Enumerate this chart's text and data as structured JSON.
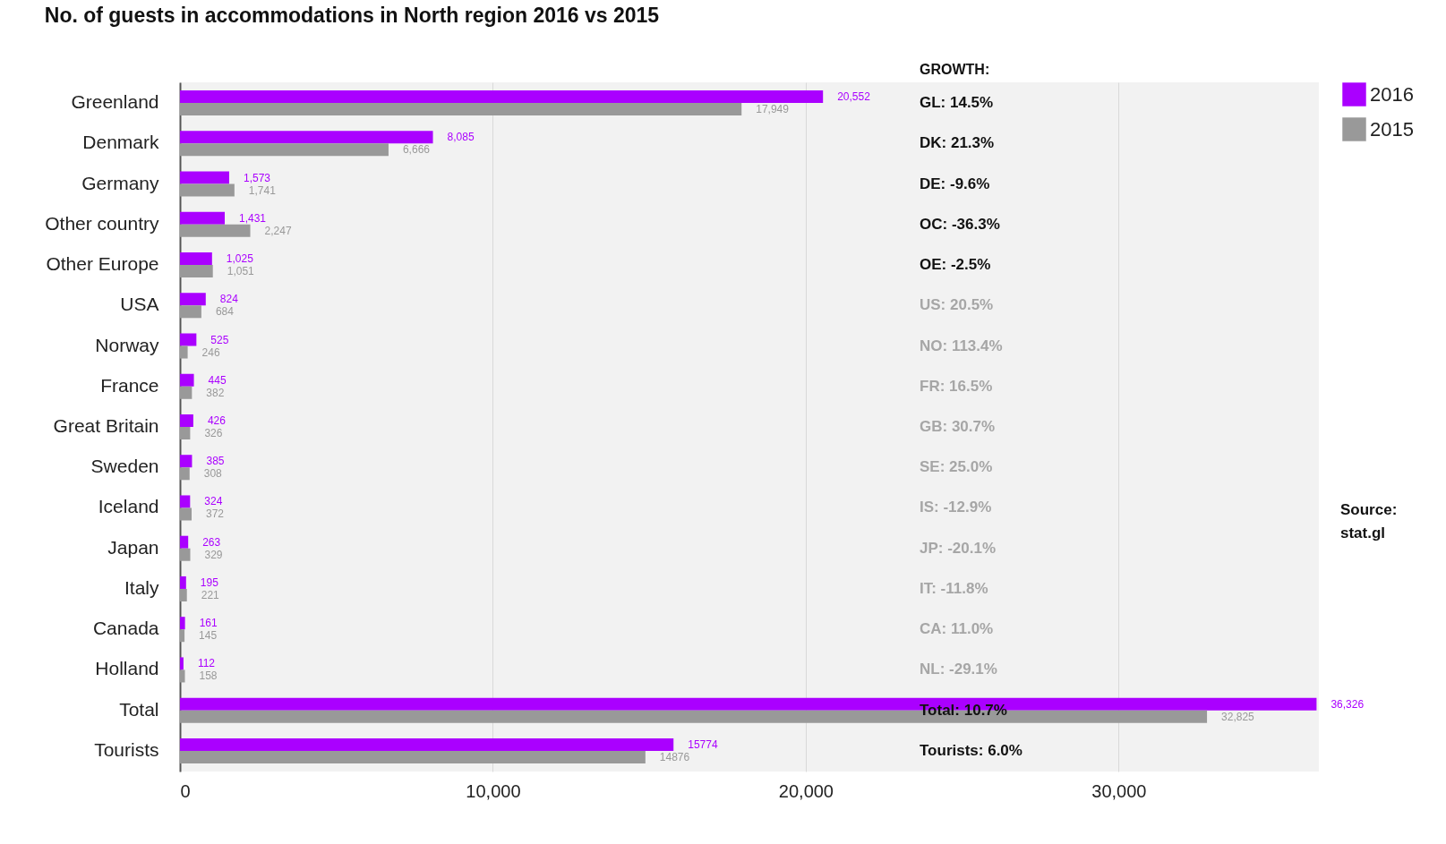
{
  "chart_data": {
    "type": "bar",
    "orientation": "horizontal",
    "title": "No. of guests in accommodations in North region 2016 vs 2015",
    "categories": [
      "Greenland",
      "Denmark",
      "Germany",
      "Other country",
      "Other Europe",
      "USA",
      "Norway",
      "France",
      "Great Britain",
      "Sweden",
      "Iceland",
      "Japan",
      "Italy",
      "Canada",
      "Holland",
      "Total",
      "Tourists"
    ],
    "series": [
      {
        "name": "2016",
        "color": "#aa00ff",
        "values": [
          20552,
          8085,
          1573,
          1431,
          1025,
          824,
          525,
          445,
          426,
          385,
          324,
          263,
          195,
          161,
          112,
          36326,
          15774
        ],
        "value_labels": [
          "20,552",
          "8,085",
          "1,573",
          "1,431",
          "1,025",
          "824",
          "525",
          "445",
          "426",
          "385",
          "324",
          "263",
          "195",
          "161",
          "112",
          "36,326",
          "15774"
        ]
      },
      {
        "name": "2015",
        "color": "#999999",
        "values": [
          17949,
          6666,
          1741,
          2247,
          1051,
          684,
          246,
          382,
          326,
          308,
          372,
          329,
          221,
          145,
          158,
          32825,
          14876
        ],
        "value_labels": [
          "17,949",
          "6,666",
          "1,741",
          "2,247",
          "1,051",
          "684",
          "246",
          "382",
          "326",
          "308",
          "372",
          "329",
          "221",
          "145",
          "158",
          "32,825",
          "14876"
        ]
      }
    ],
    "xlim": [
      0,
      36400
    ],
    "xticks": [
      0,
      {
        "value": 10000,
        "label": "10,000"
      },
      {
        "value": 20000,
        "label": "20,000"
      },
      {
        "value": 30000,
        "label": "30,000"
      }
    ],
    "grid": "x",
    "legend": "top right",
    "annotations": [
      "GROWTH:",
      "GL: 14.5%",
      "DK: 21.3%",
      "DE: -9.6%",
      "OC: -36.3%",
      "OE: -2.5%",
      "US: 20.5%",
      "NO: 113.4%",
      "FR: 16.5%",
      "GB: 30.7%",
      "SE: 25.0%",
      "IS: -12.9%",
      "JP: -20.1%",
      "IT: -11.8%",
      "CA: 11.0%",
      "NL: -29.1%",
      "Total: 10.7%",
      "Tourists: 6.0%",
      "Source: stat.gl"
    ]
  }
}
